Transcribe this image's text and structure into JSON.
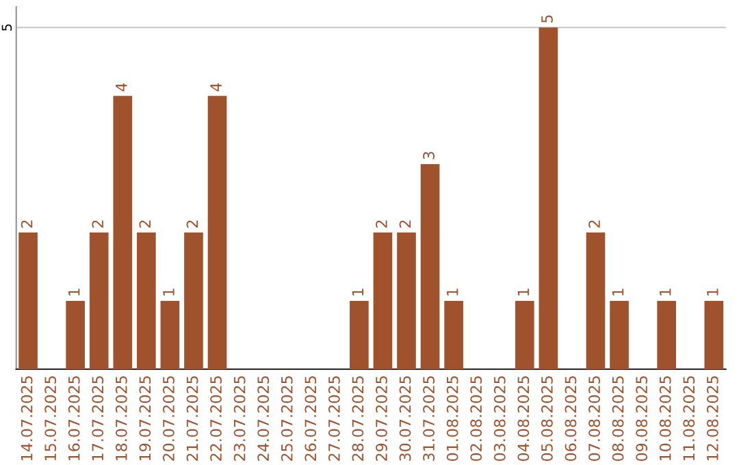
{
  "chart_data": {
    "type": "bar",
    "categories": [
      "14.07.2025",
      "15.07.2025",
      "16.07.2025",
      "17.07.2025",
      "18.07.2025",
      "19.07.2025",
      "20.07.2025",
      "21.07.2025",
      "22.07.2025",
      "23.07.2025",
      "24.07.2025",
      "25.07.2025",
      "26.07.2025",
      "27.07.2025",
      "28.07.2025",
      "29.07.2025",
      "30.07.2025",
      "31.07.2025",
      "01.08.2025",
      "02.08.2025",
      "03.08.2025",
      "04.08.2025",
      "05.08.2025",
      "06.08.2025",
      "07.08.2025",
      "08.08.2025",
      "09.08.2025",
      "10.08.2025",
      "11.08.2025",
      "12.08.2025"
    ],
    "values": [
      2,
      0,
      1,
      2,
      4,
      2,
      1,
      2,
      4,
      0,
      0,
      0,
      0,
      0,
      1,
      2,
      2,
      3,
      1,
      0,
      0,
      1,
      5,
      0,
      2,
      1,
      0,
      1,
      0,
      1
    ],
    "value_labels": [
      "2",
      null,
      "1",
      "2",
      "4",
      "2",
      "1",
      "2",
      "4",
      null,
      null,
      null,
      null,
      null,
      "1",
      "2",
      "2",
      "3",
      "1",
      null,
      null,
      "1",
      "5",
      null,
      "2",
      "1",
      null,
      "1",
      null,
      "1"
    ],
    "color": "#a0522d",
    "ylim": [
      0,
      5.3
    ],
    "yticks": [
      5
    ],
    "grid": "y"
  }
}
